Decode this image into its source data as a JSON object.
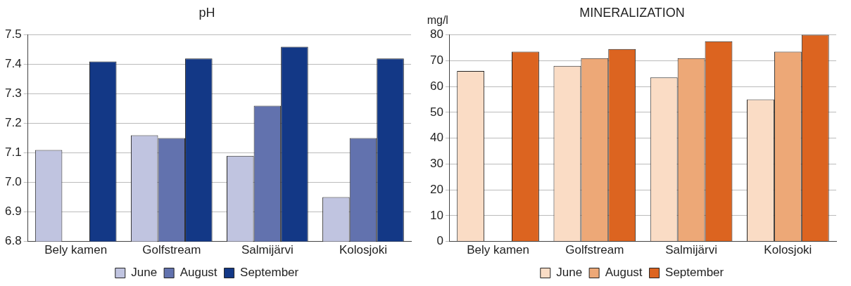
{
  "chart_data": [
    {
      "type": "bar",
      "title": "pH",
      "categories": [
        "Bely kamen",
        "Golfstream",
        "Salmijärvi",
        "Kolosjoki"
      ],
      "series": [
        {
          "name": "June",
          "color": "#c0c4e0",
          "values": [
            7.11,
            7.16,
            7.09,
            6.95
          ]
        },
        {
          "name": "August",
          "color": "#6272ae",
          "values": [
            null,
            7.15,
            7.26,
            7.15
          ]
        },
        {
          "name": "September",
          "color": "#133886",
          "values": [
            7.41,
            7.42,
            7.46,
            7.42
          ]
        }
      ],
      "ylim": [
        6.8,
        7.5
      ],
      "yticks": [
        6.8,
        6.9,
        {
          "value": 7,
          "label": "7.0"
        },
        7.1,
        7.2,
        7.3,
        7.4,
        7.5
      ],
      "grid": "y",
      "legend": "bottom"
    },
    {
      "type": "bar",
      "title": "MINERALIZATION",
      "ylabel": "mg/l",
      "categories": [
        "Bely kamen",
        "Golfstream",
        "Salmijärvi",
        "Kolosjoki"
      ],
      "series": [
        {
          "name": "June",
          "color": "#fadcc5",
          "values": [
            66,
            68,
            63.5,
            55
          ]
        },
        {
          "name": "August",
          "color": "#eda877",
          "values": [
            null,
            71,
            71,
            73.5
          ]
        },
        {
          "name": "September",
          "color": "#dc6420",
          "values": [
            73.5,
            74.5,
            77.5,
            80
          ]
        }
      ],
      "ylim": [
        0,
        80
      ],
      "yticks": [
        0,
        10,
        20,
        30,
        40,
        50,
        60,
        70,
        80
      ],
      "grid": "y",
      "legend": "bottom"
    }
  ]
}
